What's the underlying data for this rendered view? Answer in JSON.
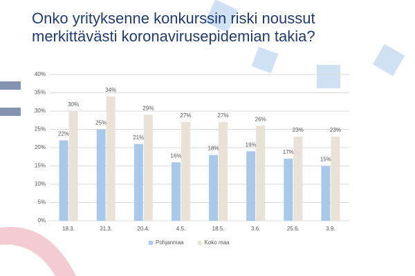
{
  "chart_data": {
    "type": "bar",
    "title": "Onko yrityksenne konkurssin riski noussut merkittävästi koronavirusepidemian takia?",
    "categories": [
      "18.3.",
      "31.3.",
      "20.4.",
      "4.5.",
      "18.5.",
      "3.6.",
      "25.6.",
      "3.9."
    ],
    "series": [
      {
        "name": "Pohjanmaa",
        "color": "#a9c9ea",
        "values": [
          22,
          25,
          21,
          16,
          18,
          19,
          17,
          15
        ],
        "value_labels": [
          "22%",
          "25%",
          "21%",
          "16%",
          "18%",
          "19%",
          "17%",
          "15%"
        ]
      },
      {
        "name": "Koko maa",
        "color": "#e9e2d6",
        "values": [
          30,
          34,
          29,
          27,
          27,
          26,
          23,
          23
        ],
        "value_labels": [
          "30%",
          "34%",
          "29%",
          "27%",
          "27%",
          "26%",
          "23%",
          "23%"
        ]
      }
    ],
    "ylim": [
      0,
      40
    ],
    "yticks": [
      {
        "value": 0,
        "label": "0%"
      },
      {
        "value": 5,
        "label": "5%"
      },
      {
        "value": 10,
        "label": "10%"
      },
      {
        "value": 15,
        "label": "15%"
      },
      {
        "value": 20,
        "label": "20%"
      },
      {
        "value": 25,
        "label": "25%"
      },
      {
        "value": 30,
        "label": "30%"
      },
      {
        "value": 35,
        "label": "35%"
      },
      {
        "value": 40,
        "label": "40%"
      }
    ],
    "grid": true,
    "legend": "bottom"
  }
}
